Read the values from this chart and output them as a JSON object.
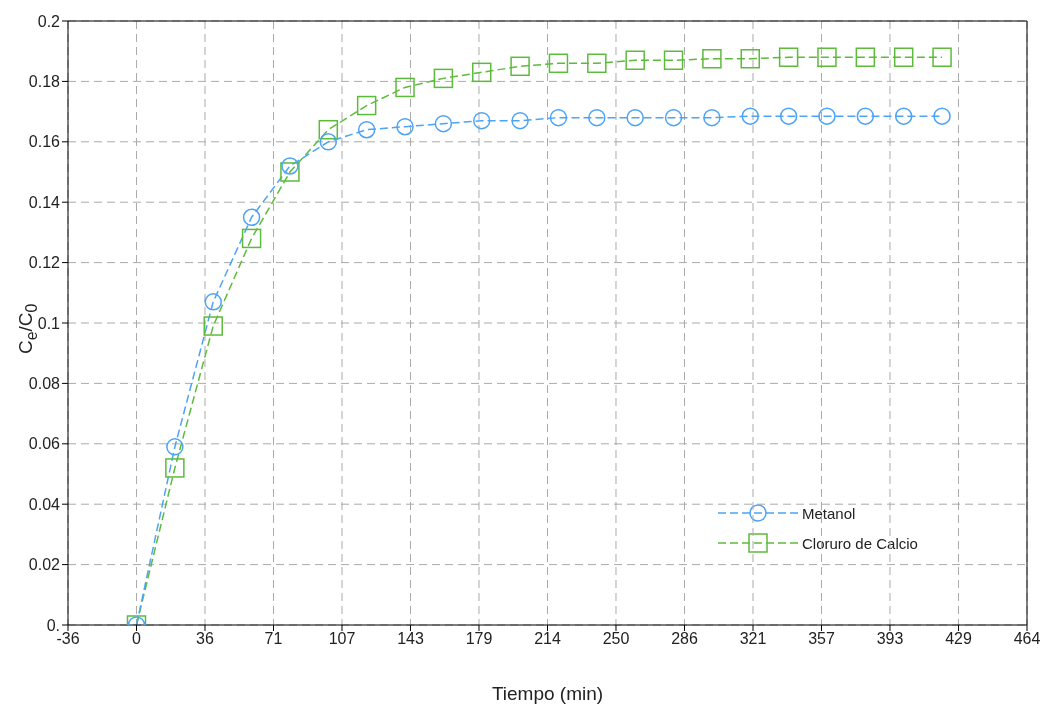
{
  "chart_data": {
    "type": "line",
    "xlabel": "Tiempo (min)",
    "ylabel": "C$_{e}$/C$_{0}$",
    "x": [
      0,
      20,
      40,
      60,
      80,
      100,
      120,
      140,
      160,
      180,
      200,
      220,
      240,
      260,
      280,
      300,
      320,
      340,
      360,
      380,
      400,
      420
    ],
    "series": [
      {
        "name": "Metanol",
        "color": "#4da3f5",
        "marker": "circle",
        "values": [
          0,
          0.059,
          0.107,
          0.135,
          0.152,
          0.16,
          0.164,
          0.165,
          0.166,
          0.167,
          0.167,
          0.168,
          0.168,
          0.168,
          0.168,
          0.168,
          0.1685,
          0.1685,
          0.1685,
          0.1685,
          0.1685,
          0.1685
        ]
      },
      {
        "name": "Cloruro de Calcio",
        "color": "#5dbb3c",
        "marker": "square",
        "values": [
          0,
          0.052,
          0.099,
          0.128,
          0.15,
          0.164,
          0.172,
          0.178,
          0.181,
          0.183,
          0.185,
          0.186,
          0.186,
          0.187,
          0.187,
          0.1875,
          0.1875,
          0.188,
          0.188,
          0.188,
          0.188,
          0.188
        ]
      }
    ],
    "xlim": [
      -35.714,
      464.286
    ],
    "xticks": [
      {
        "value": -35.714,
        "label": "-36"
      },
      0,
      {
        "value": 35.714,
        "label": "36"
      },
      {
        "value": 71.429,
        "label": "71"
      },
      {
        "value": 107.143,
        "label": "107"
      },
      {
        "value": 142.857,
        "label": "143"
      },
      {
        "value": 178.571,
        "label": "179"
      },
      {
        "value": 214.286,
        "label": "214"
      },
      250,
      {
        "value": 285.714,
        "label": "286"
      },
      {
        "value": 321.429,
        "label": "321"
      },
      {
        "value": 357.143,
        "label": "357"
      },
      {
        "value": 392.857,
        "label": "393"
      },
      {
        "value": 428.571,
        "label": "429"
      },
      {
        "value": 464.286,
        "label": "464"
      }
    ],
    "ylim": [
      0,
      0.2
    ],
    "yticks": [
      {
        "value": 0,
        "label": "0."
      },
      0.02,
      0.04,
      0.06,
      0.08,
      0.1,
      0.12,
      0.14,
      0.16,
      0.18,
      0.2
    ],
    "grid": true,
    "legend": "bottom right",
    "line_style": "dashed"
  }
}
